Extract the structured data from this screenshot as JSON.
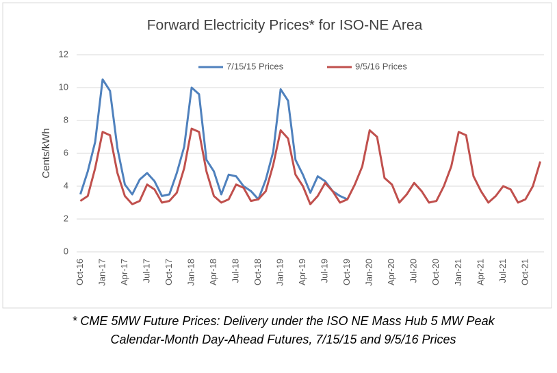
{
  "chart_data": {
    "type": "line",
    "title": "Forward Electricity Prices* for ISO-NE Area",
    "y_label": "Cents/kWh",
    "footnote": [
      "* CME 5MW Future Prices: Delivery under the ISO NE Mass Hub 5 MW Peak",
      "Calendar-Month Day-Ahead Futures, 7/15/15 and 9/5/16 Prices"
    ],
    "categories": [
      "Oct-16",
      null,
      null,
      "Jan-17",
      null,
      null,
      "Apr-17",
      null,
      null,
      "Jul-17",
      null,
      null,
      "Oct-17",
      null,
      null,
      "Jan-18",
      null,
      null,
      "Apr-18",
      null,
      null,
      "Jul-18",
      null,
      null,
      "Oct-18",
      null,
      null,
      "Jan-19",
      null,
      null,
      "Apr-19",
      null,
      null,
      "Jul-19",
      null,
      null,
      "Oct-19",
      null,
      null,
      "Jan-20",
      null,
      null,
      "Apr-20",
      null,
      null,
      "Jul-20",
      null,
      null,
      "Oct-20",
      null,
      null,
      "Jan-21",
      null,
      null,
      "Apr-21",
      null,
      null,
      "Jul-21",
      null,
      null,
      "Oct-21",
      null,
      null
    ],
    "series": [
      {
        "name": "7/15/15 Prices",
        "color": "#4f81bd",
        "values": [
          3.5,
          4.9,
          6.7,
          10.5,
          9.8,
          6.3,
          4.1,
          3.5,
          4.4,
          4.8,
          4.3,
          3.4,
          3.5,
          4.8,
          6.4,
          10.0,
          9.6,
          5.6,
          4.9,
          3.5,
          4.7,
          4.6,
          4.0,
          3.7,
          3.2,
          4.4,
          6.1,
          9.9,
          9.2,
          5.6,
          4.7,
          3.6,
          4.6,
          4.3,
          3.7,
          3.4,
          3.2,
          null,
          null,
          null,
          null,
          null,
          null,
          null,
          null,
          null,
          null,
          null,
          null,
          null,
          null,
          null,
          null,
          null,
          null,
          null,
          null,
          null,
          null,
          null,
          null,
          null,
          null
        ]
      },
      {
        "name": "9/5/16 Prices",
        "color": "#c0504d",
        "values": [
          3.1,
          3.4,
          5.1,
          7.3,
          7.1,
          4.8,
          3.4,
          2.9,
          3.1,
          4.1,
          3.8,
          3.0,
          3.1,
          3.6,
          5.1,
          7.5,
          7.3,
          4.9,
          3.4,
          3.0,
          3.2,
          4.1,
          3.9,
          3.1,
          3.2,
          3.7,
          5.3,
          7.4,
          6.9,
          4.7,
          4.0,
          2.9,
          3.4,
          4.2,
          3.7,
          3.0,
          3.2,
          4.1,
          5.2,
          7.4,
          7.0,
          4.5,
          4.1,
          3.0,
          3.5,
          4.2,
          3.7,
          3.0,
          3.1,
          4.0,
          5.2,
          7.3,
          7.1,
          4.6,
          3.7,
          3.0,
          3.4,
          4.0,
          3.8,
          3.0,
          3.2,
          4.0,
          5.5
        ]
      }
    ],
    "ylim": [
      0,
      12
    ],
    "yticks": [
      0,
      2,
      4,
      6,
      8,
      10,
      12
    ],
    "grid": true
  }
}
